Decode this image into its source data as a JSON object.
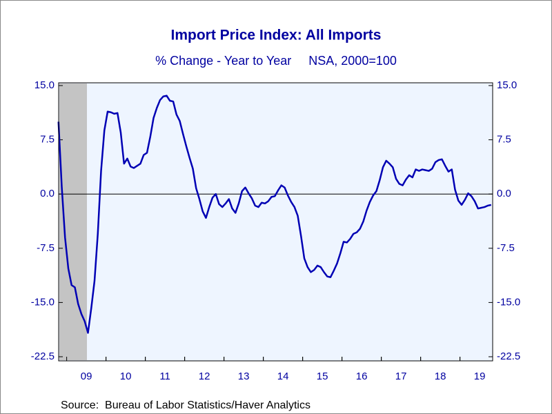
{
  "chart_data": {
    "type": "line",
    "title": "Import Price Index: All Imports",
    "subtitle": "% Change - Year to Year     NSA, 2000=100",
    "source": "Source:  Bureau of Labor Statistics/Haver Analytics",
    "categories": [
      null,
      null,
      null,
      null,
      null,
      null,
      null,
      null,
      null,
      "09",
      null,
      null,
      null,
      null,
      null,
      null,
      null,
      null,
      null,
      null,
      null,
      "10",
      null,
      null,
      null,
      null,
      null,
      null,
      null,
      null,
      null,
      null,
      null,
      "11",
      null,
      null,
      null,
      null,
      null,
      null,
      null,
      null,
      null,
      null,
      null,
      "12",
      null,
      null,
      null,
      null,
      null,
      null,
      null,
      null,
      null,
      null,
      null,
      "13",
      null,
      null,
      null,
      null,
      null,
      null,
      null,
      null,
      null,
      null,
      null,
      "14",
      null,
      null,
      null,
      null,
      null,
      null,
      null,
      null,
      null,
      null,
      null,
      "15",
      null,
      null,
      null,
      null,
      null,
      null,
      null,
      null,
      null,
      null,
      null,
      "16",
      null,
      null,
      null,
      null,
      null,
      null,
      null,
      null,
      null,
      null,
      null,
      "17",
      null,
      null,
      null,
      null,
      null,
      null,
      null,
      null,
      null,
      null,
      null,
      "18",
      null,
      null,
      null,
      null,
      null,
      null,
      null,
      null,
      null,
      null,
      null,
      "19",
      null,
      null,
      null
    ],
    "series": [
      {
        "name": "Import Price Index: All Imports",
        "color": "#0000b4",
        "values": [
          10,
          1,
          -6,
          -10.3,
          -12.6,
          -12.9,
          -15.2,
          -16.6,
          -17.6,
          -19.2,
          -15.8,
          -12,
          -5.5,
          3.2,
          8.8,
          11.4,
          11.3,
          11.1,
          11.2,
          8.5,
          4.2,
          4.9,
          3.8,
          3.6,
          3.9,
          4.2,
          5.4,
          5.7,
          7.9,
          10.5,
          11.9,
          13.0,
          13.5,
          13.6,
          12.9,
          12.8,
          11.0,
          10.1,
          8.3,
          6.6,
          5.0,
          3.5,
          0.8,
          -0.7,
          -2.4,
          -3.3,
          -1.8,
          -0.5,
          0.0,
          -1.4,
          -1.8,
          -1.3,
          -0.7,
          -2.0,
          -2.6,
          -1.3,
          0.4,
          0.9,
          0.1,
          -0.6,
          -1.6,
          -1.8,
          -1.2,
          -1.3,
          -1.0,
          -0.4,
          -0.3,
          0.5,
          1.2,
          0.9,
          -0.2,
          -1.1,
          -1.8,
          -3.0,
          -5.8,
          -8.9,
          -10.1,
          -10.8,
          -10.5,
          -9.9,
          -10.1,
          -10.8,
          -11.4,
          -11.5,
          -10.6,
          -9.6,
          -8.2,
          -6.6,
          -6.7,
          -6.2,
          -5.5,
          -5.3,
          -4.8,
          -3.8,
          -2.3,
          -1.1,
          -0.2,
          0.4,
          1.9,
          3.7,
          4.6,
          4.2,
          3.7,
          2.1,
          1.4,
          1.2,
          2.0,
          2.6,
          2.3,
          3.4,
          3.2,
          3.4,
          3.3,
          3.2,
          3.5,
          4.4,
          4.7,
          4.8,
          3.9,
          3.1,
          3.4,
          0.6,
          -0.9,
          -1.5,
          -0.8,
          0.1,
          -0.3,
          -1.0,
          -2.0,
          -1.9,
          -1.8,
          -1.6,
          -1.5
        ]
      }
    ],
    "ylim": [
      -22.5,
      15
    ],
    "yticks": [
      {
        "value": 15,
        "label": "15.0"
      },
      7.5,
      {
        "value": 0,
        "label": "0.0"
      },
      -7.5,
      {
        "value": -15,
        "label": "-15.0"
      },
      -22.5
    ],
    "y2lim": [
      -22.5,
      15
    ],
    "y2ticks": [
      {
        "value": 15,
        "label": "15.0"
      },
      7.5,
      {
        "value": 0,
        "label": "0.0"
      },
      -7.5,
      {
        "value": -15,
        "label": "-15.0"
      },
      -22.5
    ]
  }
}
